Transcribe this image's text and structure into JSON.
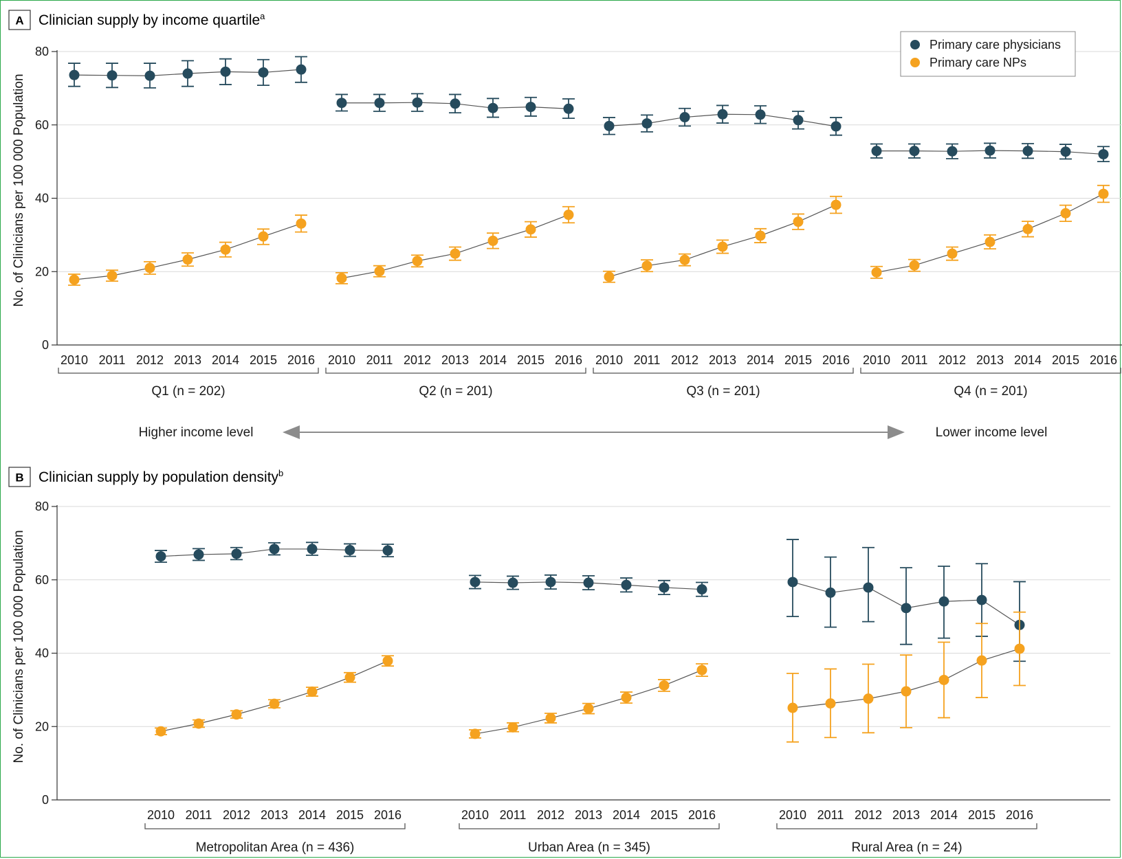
{
  "colors": {
    "physicians": "#264b5d",
    "nps": "#f5a21f",
    "line": "#555555",
    "grid": "#d9d9d9",
    "arrow": "#8c8c8c"
  },
  "panelA": {
    "letter": "A",
    "title": "Clinician supply by income quartile",
    "title_sup": "a",
    "ylabel": "No. of Clinicians per 100 000 Population",
    "income_left": "Higher income level",
    "income_right": "Lower income level"
  },
  "panelB": {
    "letter": "B",
    "title": "Clinician supply by population density",
    "title_sup": "b",
    "ylabel": "No. of Clinicians per 100 000 Population"
  },
  "legend": {
    "physicians": "Primary care physicians",
    "nps": "Primary care NPs"
  },
  "chart_data": [
    {
      "type": "line",
      "panel": "A",
      "title": "Clinician supply by income quartile",
      "ylabel": "No. of Clinicians per 100 000 Population",
      "ylim": [
        0,
        80
      ],
      "yticks": [
        0,
        20,
        40,
        60,
        80
      ],
      "grid": true,
      "legend_position": "top-right",
      "x": [
        "2010",
        "2011",
        "2012",
        "2013",
        "2014",
        "2015",
        "2016"
      ],
      "groups": [
        {
          "label": "Q1 (n = 202)",
          "series": [
            {
              "name": "Primary care physicians",
              "values": [
                73.6,
                73.5,
                73.4,
                74.0,
                74.5,
                74.3,
                75.1
              ],
              "lower": [
                70.5,
                70.2,
                70.1,
                70.5,
                71.0,
                70.8,
                71.6
              ],
              "upper": [
                76.8,
                76.8,
                76.8,
                77.5,
                78.0,
                77.8,
                78.6
              ]
            },
            {
              "name": "Primary care NPs",
              "values": [
                17.8,
                18.9,
                21.0,
                23.3,
                26.0,
                29.6,
                33.1
              ],
              "lower": [
                16.3,
                17.4,
                19.3,
                21.5,
                24.0,
                27.4,
                30.8
              ],
              "upper": [
                19.3,
                20.4,
                22.7,
                25.1,
                28.0,
                31.6,
                35.4
              ]
            }
          ]
        },
        {
          "label": "Q2 (n = 201)",
          "series": [
            {
              "name": "Primary care physicians",
              "values": [
                66.0,
                66.0,
                66.1,
                65.8,
                64.6,
                64.9,
                64.4
              ],
              "lower": [
                63.8,
                63.7,
                63.7,
                63.3,
                62.1,
                62.4,
                61.8
              ],
              "upper": [
                68.3,
                68.3,
                68.5,
                68.3,
                67.2,
                67.5,
                67.1
              ]
            },
            {
              "name": "Primary care NPs",
              "values": [
                18.2,
                20.1,
                22.9,
                24.9,
                28.4,
                31.5,
                35.5
              ],
              "lower": [
                16.7,
                18.6,
                21.3,
                23.1,
                26.3,
                29.4,
                33.3
              ],
              "upper": [
                19.7,
                21.6,
                24.5,
                26.7,
                30.5,
                33.6,
                37.7
              ]
            }
          ]
        },
        {
          "label": "Q3 (n = 201)",
          "series": [
            {
              "name": "Primary care physicians",
              "values": [
                59.7,
                60.4,
                62.1,
                62.9,
                62.8,
                61.3,
                59.6
              ],
              "lower": [
                57.4,
                58.1,
                59.7,
                60.5,
                60.4,
                58.9,
                57.2
              ],
              "upper": [
                62.0,
                62.7,
                64.5,
                65.3,
                65.2,
                63.7,
                62.0
              ]
            },
            {
              "name": "Primary care NPs",
              "values": [
                18.6,
                21.6,
                23.2,
                26.8,
                29.8,
                33.6,
                38.2
              ],
              "lower": [
                17.1,
                20.0,
                21.6,
                25.0,
                27.9,
                31.5,
                35.9
              ],
              "upper": [
                20.1,
                23.2,
                24.8,
                28.6,
                31.7,
                35.7,
                40.5
              ]
            }
          ]
        },
        {
          "label": "Q4 (n = 201)",
          "series": [
            {
              "name": "Primary care physicians",
              "values": [
                52.9,
                52.9,
                52.8,
                53.0,
                52.9,
                52.7,
                52.0
              ],
              "lower": [
                51.0,
                51.0,
                50.8,
                51.0,
                50.9,
                50.7,
                50.0
              ],
              "upper": [
                54.8,
                54.8,
                54.8,
                55.0,
                54.9,
                54.7,
                54.1
              ]
            },
            {
              "name": "Primary care NPs",
              "values": [
                19.8,
                21.7,
                24.9,
                28.1,
                31.6,
                35.9,
                41.2
              ],
              "lower": [
                18.2,
                20.1,
                23.1,
                26.2,
                29.5,
                33.7,
                38.9
              ],
              "upper": [
                21.4,
                23.3,
                26.7,
                30.0,
                33.7,
                38.1,
                43.5
              ]
            }
          ]
        }
      ]
    },
    {
      "type": "line",
      "panel": "B",
      "title": "Clinician supply by population density",
      "ylabel": "No. of Clinicians per 100 000 Population",
      "ylim": [
        0,
        80
      ],
      "yticks": [
        0,
        20,
        40,
        60,
        80
      ],
      "grid": true,
      "x": [
        "2010",
        "2011",
        "2012",
        "2013",
        "2014",
        "2015",
        "2016"
      ],
      "groups": [
        {
          "label": "Metropolitan Area (n = 436)",
          "series": [
            {
              "name": "Primary care physicians",
              "values": [
                66.4,
                66.9,
                67.1,
                68.4,
                68.4,
                68.1,
                68.0
              ],
              "lower": [
                64.8,
                65.3,
                65.5,
                66.8,
                66.7,
                66.4,
                66.3
              ],
              "upper": [
                68.0,
                68.5,
                68.8,
                70.1,
                70.2,
                69.8,
                69.7
              ]
            },
            {
              "name": "Primary care NPs",
              "values": [
                18.7,
                20.8,
                23.3,
                26.2,
                29.5,
                33.4,
                37.9
              ],
              "lower": [
                17.8,
                19.8,
                22.3,
                25.1,
                28.3,
                32.1,
                36.5
              ],
              "upper": [
                19.6,
                21.8,
                24.3,
                27.3,
                30.7,
                34.7,
                39.3
              ]
            }
          ]
        },
        {
          "label": "Urban Area (n = 345)",
          "series": [
            {
              "name": "Primary care physicians",
              "values": [
                59.4,
                59.2,
                59.4,
                59.2,
                58.6,
                57.9,
                57.4
              ],
              "lower": [
                57.6,
                57.4,
                57.5,
                57.3,
                56.7,
                56.0,
                55.5
              ],
              "upper": [
                61.2,
                61.0,
                61.3,
                61.1,
                60.5,
                59.8,
                59.3
              ]
            },
            {
              "name": "Primary care NPs",
              "values": [
                18.0,
                19.8,
                22.3,
                24.9,
                27.9,
                31.2,
                35.4
              ],
              "lower": [
                16.9,
                18.6,
                21.0,
                23.5,
                26.4,
                29.6,
                33.7
              ],
              "upper": [
                19.1,
                21.0,
                23.6,
                26.3,
                29.4,
                32.8,
                37.1
              ]
            }
          ]
        },
        {
          "label": "Rural Area (n = 24)",
          "series": [
            {
              "name": "Primary care physicians",
              "values": [
                59.4,
                56.5,
                57.9,
                52.3,
                54.1,
                54.5,
                47.7
              ],
              "lower": [
                50.0,
                47.1,
                48.6,
                42.4,
                44.1,
                44.6,
                37.8
              ],
              "upper": [
                71.0,
                66.2,
                68.8,
                63.3,
                63.7,
                64.4,
                59.5
              ]
            },
            {
              "name": "Primary care NPs",
              "values": [
                25.1,
                26.3,
                27.6,
                29.6,
                32.7,
                38.0,
                41.2
              ],
              "lower": [
                15.8,
                17.0,
                18.3,
                19.7,
                22.4,
                27.9,
                31.2
              ],
              "upper": [
                34.5,
                35.7,
                37.0,
                39.5,
                43.0,
                48.1,
                51.2
              ]
            }
          ]
        }
      ]
    }
  ]
}
